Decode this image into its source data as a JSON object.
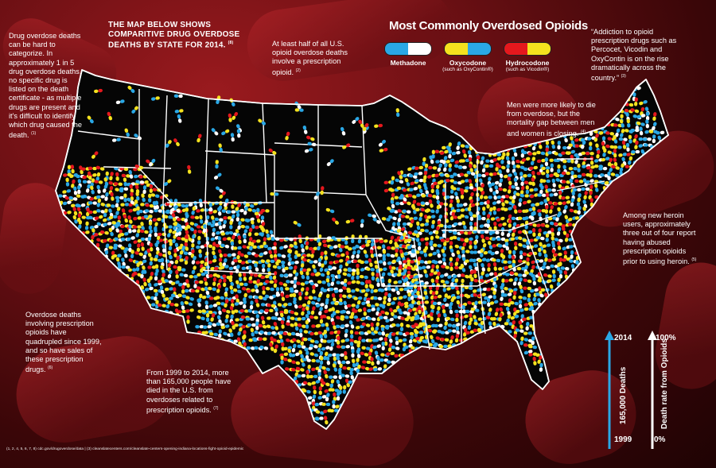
{
  "headline": "THE MAP BELOW SHOWS COMPARITIVE DRUG OVERDOSE DEATHS BY STATE FOR 2014.",
  "headline_ref": "(8)",
  "notes": {
    "categorize": "Drug overdose deaths can be hard to categorize. In approximately 1 in 5 drug overdose deaths, no specific drug is listed on the death certificate - as multiple drugs are present and it's difficult to identify which drug caused the death.",
    "categorize_ref": "(1)",
    "half": "At least half of all U.S. opioid overdose deaths involve a prescription opioid.",
    "half_ref": "(2)",
    "addiction": "“Addiction to opioid prescription drugs such as Percocet, Vicodin and OxyContin is on the rise dramatically across the country.”",
    "addiction_ref": "(3)",
    "men": "Men were more likely to die from overdose, but the mortality gap between men and women is closing.",
    "men_ref": "(4)",
    "heroin": "Among new heroin users, approximately three out of four report having abused prescription opioids prior to using heroin.",
    "heroin_ref": "(5)",
    "quadrupled": "Overdose deaths involving prescription opioids have quadrupled since 1999, and so have sales of these prescription drugs.",
    "quadrupled_ref": "(6)",
    "deaths": "From 1999 to 2014, more than 165,000 people have died in the U.S. from overdoses related to prescription opioids.",
    "deaths_ref": "(7)"
  },
  "legend": {
    "title": "Most Commonly Overdosed Opioids",
    "items": [
      {
        "name": "Methadone",
        "sub": "",
        "colors": [
          "#2aa8e6",
          "#ffffff"
        ]
      },
      {
        "name": "Oxycodone",
        "sub": "(such as OxyContin®)",
        "colors": [
          "#f4e21e",
          "#2aa8e6"
        ]
      },
      {
        "name": "Hydrocodone",
        "sub": "(such as Vicodin®)",
        "colors": [
          "#e5181d",
          "#f4e21e"
        ]
      }
    ]
  },
  "scales": {
    "deaths": {
      "top": "2014",
      "bottom": "1999",
      "label": "165,000 Deaths",
      "color": "#2aa8e6"
    },
    "rate": {
      "top": "100%",
      "bottom": "0%",
      "label": "Death rate from Opioids",
      "color": "#ffffff"
    }
  },
  "footnote": "(1, 2, 4, 5, 6, 7, 8) cdc.gov/drugoverdose/data  |  (3) cleanslatecenters.com/cleanslate-centers-opening-indiana-locations-fight-opioid-epidemic"
}
